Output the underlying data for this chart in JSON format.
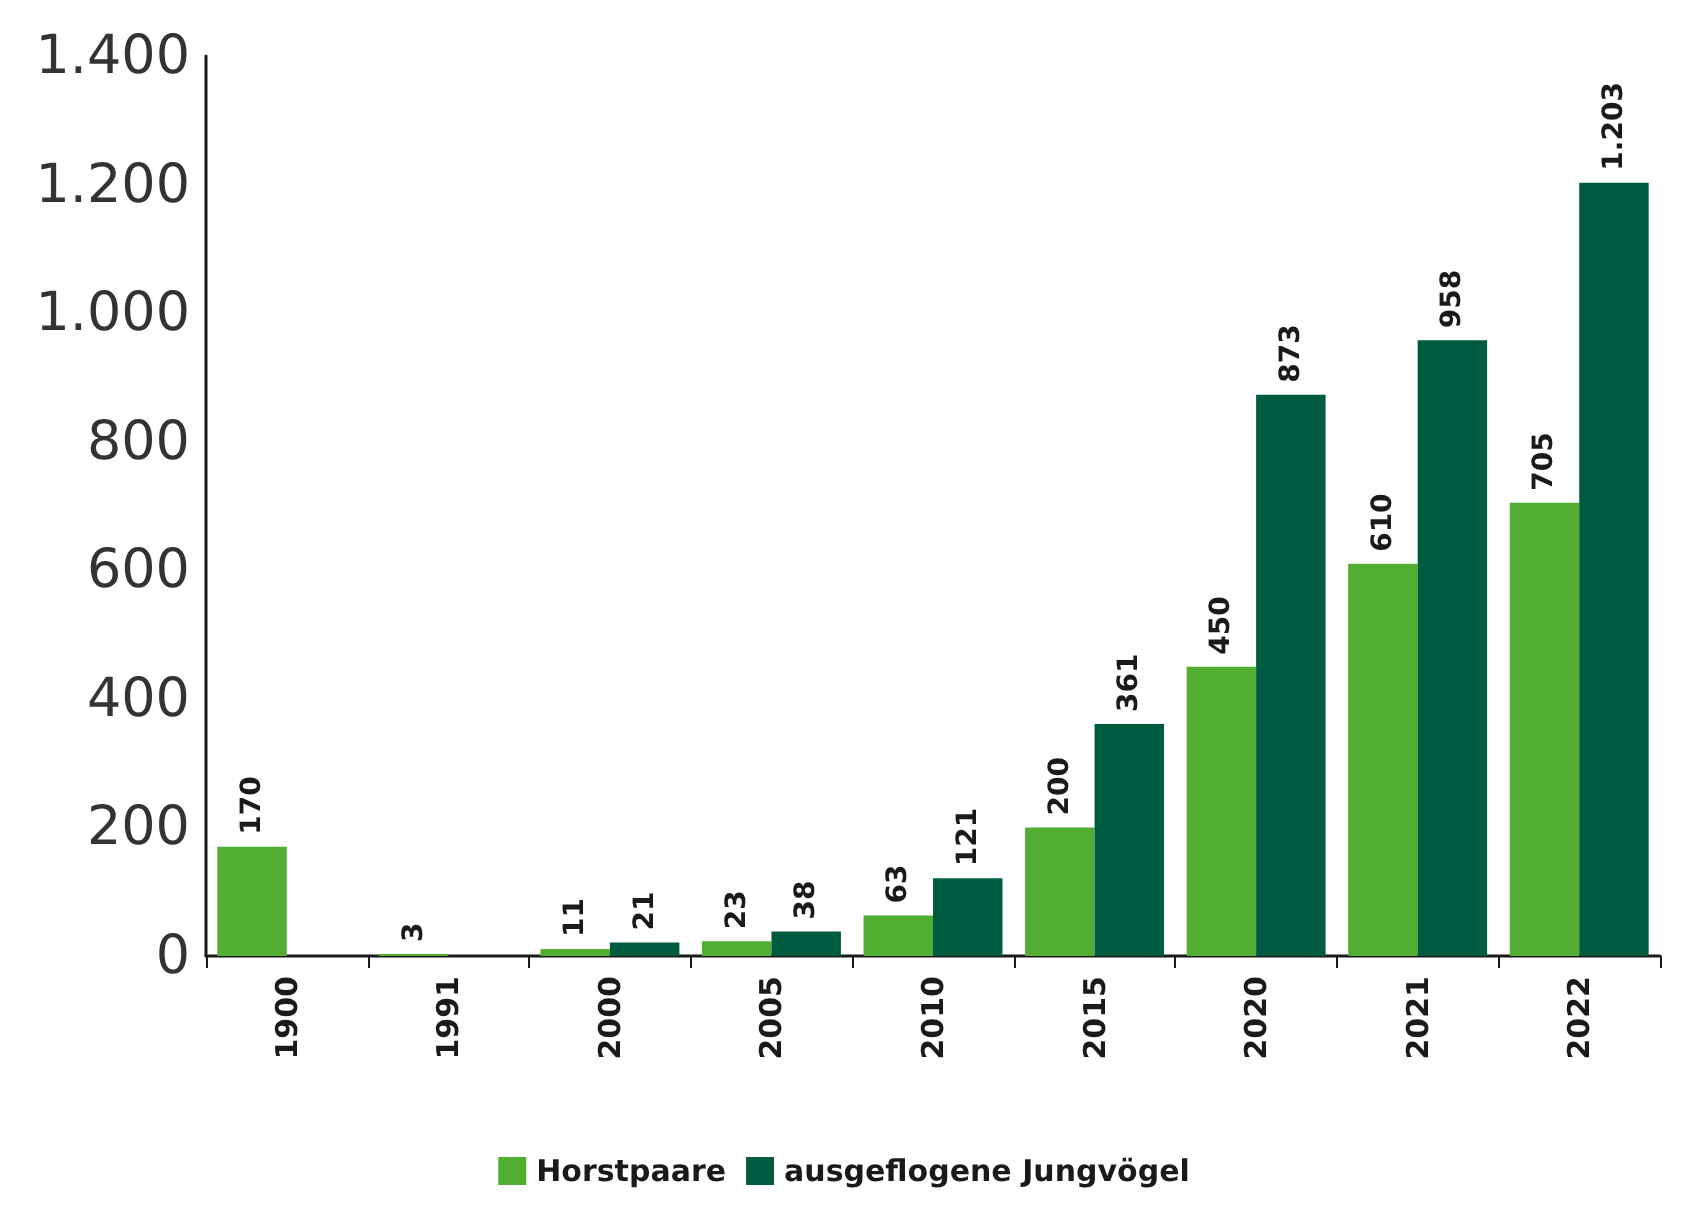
{
  "chart_data": {
    "type": "bar",
    "categories": [
      "1900",
      "1991",
      "2000",
      "2005",
      "2010",
      "2015",
      "2020",
      "2021",
      "2022"
    ],
    "series": [
      {
        "name": "Horstpaare",
        "color": "#52ae32",
        "values": [
          170,
          3,
          11,
          23,
          63,
          200,
          450,
          610,
          705
        ],
        "value_labels": [
          "170",
          "3",
          "11",
          "23",
          "63",
          "200",
          "450",
          "610",
          "705"
        ]
      },
      {
        "name": "ausgeflogene Jungvögel",
        "color": "#005c41",
        "values": [
          null,
          null,
          21,
          38,
          121,
          361,
          873,
          958,
          1203
        ],
        "value_labels": [
          null,
          null,
          "21",
          "38",
          "121",
          "361",
          "873",
          "958",
          "1.203"
        ]
      }
    ],
    "ylim": [
      0,
      1400
    ],
    "yticks": [
      0,
      200,
      400,
      600,
      800,
      {
        "value": 1000,
        "label": "1.000"
      },
      {
        "value": 1200,
        "label": "1.200"
      },
      {
        "value": 1400,
        "label": "1.400"
      }
    ],
    "grid": false,
    "legend": "bottom"
  }
}
